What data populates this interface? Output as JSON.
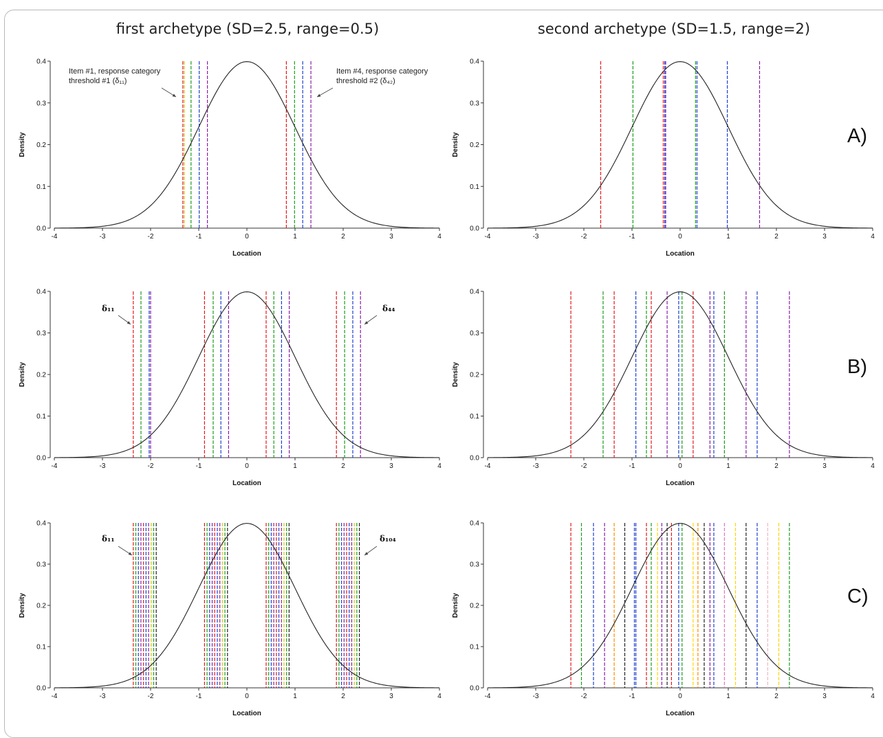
{
  "titles": {
    "left": "first archetype (SD=2.5, range=0.5)",
    "right": "second archetype (SD=1.5, range=2)"
  },
  "row_labels": [
    "A)",
    "B)",
    "C)"
  ],
  "chart_data": [
    {
      "type": "line",
      "panel": "A-left",
      "xlabel": "Location",
      "ylabel": "Density",
      "xlim": [
        -4,
        4
      ],
      "ylim": [
        0,
        0.4
      ],
      "xticks": [
        "-4",
        "-3",
        "-2",
        "-1",
        "0",
        "1",
        "2",
        "3",
        "4"
      ],
      "yticks": [
        "0.0",
        "0.1",
        "0.2",
        "0.3",
        "0.4"
      ],
      "curve": {
        "type": "normal",
        "mean": 0,
        "sd": 1
      },
      "vlines": [
        {
          "x": -1.33,
          "color": "#e41a1c"
        },
        {
          "x": -1.3,
          "color": "#cccc00"
        },
        {
          "x": -1.16,
          "color": "#1a9e1a"
        },
        {
          "x": -0.99,
          "color": "#2040d0"
        },
        {
          "x": -0.82,
          "color": "#8b1fa8"
        },
        {
          "x": 0.82,
          "color": "#e41a1c"
        },
        {
          "x": 0.99,
          "color": "#1a9e1a"
        },
        {
          "x": 1.16,
          "color": "#2040d0"
        },
        {
          "x": 1.33,
          "color": "#8b1fa8"
        }
      ],
      "annotations": [
        {
          "lines": [
            "Item #1, response category",
            "threshold #1 (δ₁₁)"
          ]
        },
        {
          "lines": [
            "Item #4, response category",
            "threshold #2 (δ₄₂)"
          ]
        }
      ]
    },
    {
      "type": "line",
      "panel": "A-right",
      "xlabel": "Location",
      "ylabel": "Density",
      "xlim": [
        -4,
        4
      ],
      "ylim": [
        0,
        0.4
      ],
      "xticks": [
        "-4",
        "-3",
        "-2",
        "-1",
        "0",
        "1",
        "2",
        "3",
        "4"
      ],
      "yticks": [
        "0.0",
        "0.1",
        "0.2",
        "0.3",
        "0.4"
      ],
      "curve": {
        "type": "normal",
        "mean": 0,
        "sd": 1
      },
      "vlines": [
        {
          "x": -1.65,
          "color": "#e41a1c"
        },
        {
          "x": -0.98,
          "color": "#1a9e1a"
        },
        {
          "x": -0.35,
          "color": "#e41a1c"
        },
        {
          "x": -0.32,
          "color": "#2040d0"
        },
        {
          "x": -0.3,
          "color": "#8b1fa8"
        },
        {
          "x": 0.32,
          "color": "#1a9e1a"
        },
        {
          "x": 0.35,
          "color": "#2040d0"
        },
        {
          "x": 0.98,
          "color": "#2040d0"
        },
        {
          "x": 1.65,
          "color": "#8b1fa8"
        }
      ],
      "annotations": []
    },
    {
      "type": "line",
      "panel": "B-left",
      "xlabel": "Location",
      "ylabel": "Density",
      "xlim": [
        -4,
        4
      ],
      "ylim": [
        0,
        0.4
      ],
      "xticks": [
        "-4",
        "-3",
        "-2",
        "-1",
        "0",
        "1",
        "2",
        "3",
        "4"
      ],
      "yticks": [
        "0.0",
        "0.1",
        "0.2",
        "0.3",
        "0.4"
      ],
      "curve": {
        "type": "normal",
        "mean": 0,
        "sd": 1
      },
      "vlines": [
        {
          "x": -2.36,
          "color": "#e41a1c"
        },
        {
          "x": -2.2,
          "color": "#1a9e1a"
        },
        {
          "x": -2.03,
          "color": "#2040d0"
        },
        {
          "x": -2.0,
          "color": "#8b1fa8"
        },
        {
          "x": -0.88,
          "color": "#e41a1c"
        },
        {
          "x": -0.7,
          "color": "#1a9e1a"
        },
        {
          "x": -0.54,
          "color": "#2040d0"
        },
        {
          "x": -0.38,
          "color": "#8b1fa8"
        },
        {
          "x": 0.4,
          "color": "#e41a1c"
        },
        {
          "x": 0.56,
          "color": "#1a9e1a"
        },
        {
          "x": 0.72,
          "color": "#2040d0"
        },
        {
          "x": 0.88,
          "color": "#8b1fa8"
        },
        {
          "x": 1.86,
          "color": "#e41a1c"
        },
        {
          "x": 2.03,
          "color": "#1a9e1a"
        },
        {
          "x": 2.2,
          "color": "#2040d0"
        },
        {
          "x": 2.36,
          "color": "#8b1fa8"
        }
      ],
      "annotations": [
        {
          "lines": [
            "δ₁₁"
          ]
        },
        {
          "lines": [
            "δ₄₄"
          ]
        }
      ]
    },
    {
      "type": "line",
      "panel": "B-right",
      "xlabel": "Location",
      "ylabel": "Density",
      "xlim": [
        -4,
        4
      ],
      "ylim": [
        0,
        0.4
      ],
      "xticks": [
        "-4",
        "-3",
        "-2",
        "-1",
        "0",
        "1",
        "2",
        "3",
        "4"
      ],
      "yticks": [
        "0.0",
        "0.1",
        "0.2",
        "0.3",
        "0.4"
      ],
      "curve": {
        "type": "normal",
        "mean": 0,
        "sd": 1
      },
      "vlines": [
        {
          "x": -2.27,
          "color": "#e41a1c"
        },
        {
          "x": -1.6,
          "color": "#1a9e1a"
        },
        {
          "x": -1.37,
          "color": "#e41a1c"
        },
        {
          "x": -0.92,
          "color": "#2040d0"
        },
        {
          "x": -0.7,
          "color": "#1a9e1a"
        },
        {
          "x": -0.6,
          "color": "#e41a1c"
        },
        {
          "x": -0.27,
          "color": "#8b1fa8"
        },
        {
          "x": -0.03,
          "color": "#2040d0"
        },
        {
          "x": 0.04,
          "color": "#1a9e1a"
        },
        {
          "x": 0.27,
          "color": "#e41a1c"
        },
        {
          "x": 0.62,
          "color": "#8b1fa8"
        },
        {
          "x": 0.7,
          "color": "#2040d0"
        },
        {
          "x": 0.92,
          "color": "#1a9e1a"
        },
        {
          "x": 1.37,
          "color": "#8b1fa8"
        },
        {
          "x": 1.6,
          "color": "#2040d0"
        },
        {
          "x": 2.27,
          "color": "#8b1fa8"
        }
      ],
      "annotations": []
    },
    {
      "type": "line",
      "panel": "C-left",
      "xlabel": "Location",
      "ylabel": "Density",
      "xlim": [
        -4,
        4
      ],
      "ylim": [
        0,
        0.4
      ],
      "xticks": [
        "-4",
        "-3",
        "-2",
        "-1",
        "0",
        "1",
        "2",
        "3",
        "4"
      ],
      "yticks": [
        "0.0",
        "0.1",
        "0.2",
        "0.3",
        "0.4"
      ],
      "curve": {
        "type": "normal",
        "mean": 0,
        "sd": 1
      },
      "vline_clusters": [
        {
          "start": -2.36,
          "step": 0.053
        },
        {
          "start": -0.88,
          "step": 0.053
        },
        {
          "start": 0.4,
          "step": 0.053
        },
        {
          "start": 1.86,
          "step": 0.053
        }
      ],
      "cluster_colors": [
        "#e41a1c",
        "#1a9e1a",
        "#2040d0",
        "#8b1fa8",
        "#e41a1c",
        "#2040d0",
        "#8b1fa8",
        "#cccc00",
        "#1a9e1a",
        "#222222"
      ],
      "annotations": [
        {
          "lines": [
            "δ₁₁"
          ]
        },
        {
          "lines": [
            "δ₁₀₄"
          ]
        }
      ]
    },
    {
      "type": "line",
      "panel": "C-right",
      "xlabel": "Location",
      "ylabel": "Density",
      "xlim": [
        -4,
        4
      ],
      "ylim": [
        0,
        0.4
      ],
      "xticks": [
        "-4",
        "-3",
        "-2",
        "-1",
        "0",
        "1",
        "2",
        "3",
        "4"
      ],
      "yticks": [
        "0.0",
        "0.1",
        "0.2",
        "0.3",
        "0.4"
      ],
      "curve": {
        "type": "normal",
        "mean": 0,
        "sd": 1
      },
      "vlines": [
        {
          "x": -2.27,
          "color": "#e41a1c"
        },
        {
          "x": -2.05,
          "color": "#1a9e1a"
        },
        {
          "x": -1.8,
          "color": "#2040d0"
        },
        {
          "x": -1.57,
          "color": "#8b1fa8"
        },
        {
          "x": -1.37,
          "color": "#ff8c00"
        },
        {
          "x": -1.15,
          "color": "#222222"
        },
        {
          "x": -0.95,
          "color": "#2040d0"
        },
        {
          "x": -0.92,
          "color": "#2040d0"
        },
        {
          "x": -0.7,
          "color": "#e41a1c"
        },
        {
          "x": -0.6,
          "color": "#1a9e1a"
        },
        {
          "x": -0.47,
          "color": "#ffd400"
        },
        {
          "x": -0.38,
          "color": "#8b1fa8"
        },
        {
          "x": -0.27,
          "color": "#222222"
        },
        {
          "x": -0.18,
          "color": "#e41a1c"
        },
        {
          "x": -0.03,
          "color": "#2040d0"
        },
        {
          "x": 0.04,
          "color": "#1a9e1a"
        },
        {
          "x": 0.27,
          "color": "#ffd400"
        },
        {
          "x": 0.37,
          "color": "#ff8c00"
        },
        {
          "x": 0.5,
          "color": "#222222"
        },
        {
          "x": 0.62,
          "color": "#8b1fa8"
        },
        {
          "x": 0.7,
          "color": "#2040d0"
        },
        {
          "x": 0.92,
          "color": "#e377c2"
        },
        {
          "x": 1.15,
          "color": "#ffd400"
        },
        {
          "x": 1.37,
          "color": "#222222"
        },
        {
          "x": 1.6,
          "color": "#2040d0"
        },
        {
          "x": 1.82,
          "color": "#f4b6c2"
        },
        {
          "x": 2.05,
          "color": "#ffd400"
        },
        {
          "x": 2.27,
          "color": "#1a9e1a"
        }
      ],
      "annotations": []
    }
  ]
}
